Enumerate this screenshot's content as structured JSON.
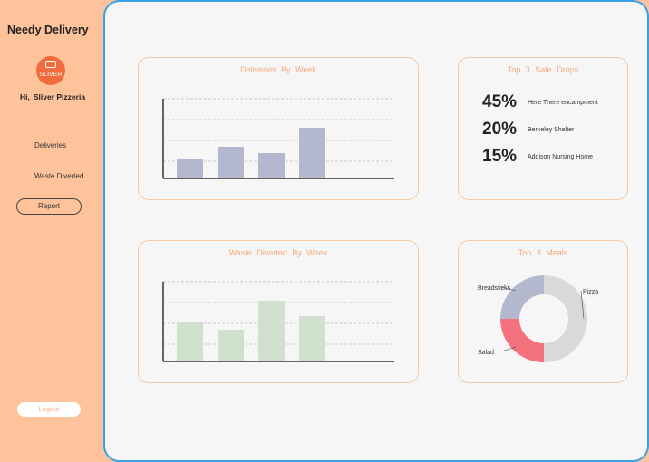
{
  "app": {
    "title": "Needy Delivery"
  },
  "sidebar": {
    "logo_text": "SLIVER",
    "greeting_prefix": "Hi,",
    "username": "Sliver Pizzeria",
    "nav": [
      {
        "label": "Deliveries"
      },
      {
        "label": "Waste Diverted"
      },
      {
        "label": "Report"
      }
    ],
    "logout_label": "Logout"
  },
  "deliveries_card": {
    "title": "Deliveries By Week"
  },
  "waste_card": {
    "title": "Waste Diverted By Week"
  },
  "safe_drops": {
    "title": "Top 3 Safe Drops",
    "items": [
      {
        "percent": "45%",
        "name": "Here There encampment"
      },
      {
        "percent": "20%",
        "name": "Berkeley Shelter"
      },
      {
        "percent": "15%",
        "name": "Addison Nursing Home"
      }
    ]
  },
  "meals": {
    "title": "Top 3 Meals"
  },
  "chart_data": [
    {
      "type": "bar",
      "title": "Deliveries By Week",
      "values": [
        21,
        35,
        28,
        56
      ],
      "ylim": [
        0,
        88
      ],
      "grid": true,
      "color": "#b3b8cf"
    },
    {
      "type": "bar",
      "title": "Waste Diverted By Week",
      "values": [
        44,
        35,
        67,
        50
      ],
      "ylim": [
        0,
        88
      ],
      "grid": true,
      "color": "#cfe0cc"
    },
    {
      "type": "pie",
      "title": "Top 3 Meals",
      "categories": [
        "Pizza",
        "Salad",
        "Breadsticks"
      ],
      "values": [
        50,
        25,
        25
      ],
      "colors": [
        "#d9d9d9",
        "#f4717e",
        "#b3b8cf"
      ]
    }
  ]
}
